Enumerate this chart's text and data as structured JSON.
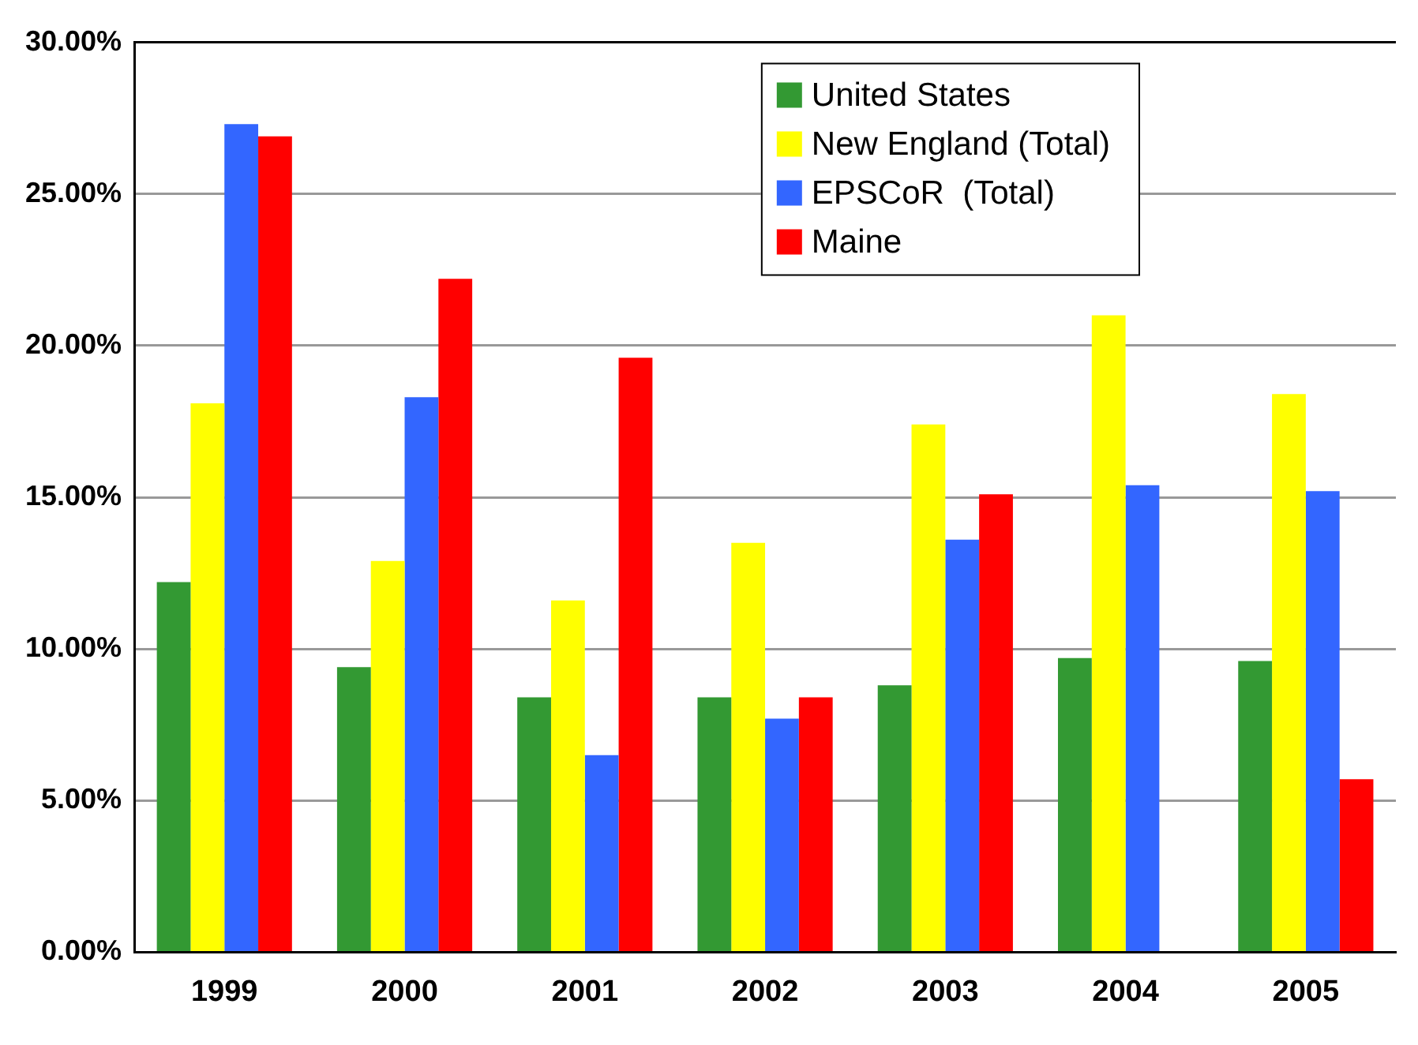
{
  "chart_data": {
    "type": "bar",
    "categories": [
      "1999",
      "2000",
      "2001",
      "2002",
      "2003",
      "2004",
      "2005"
    ],
    "series": [
      {
        "name": "United States",
        "color": "#339933",
        "values": [
          12.2,
          9.4,
          8.4,
          8.4,
          8.8,
          9.7,
          9.6
        ]
      },
      {
        "name": "New England (Total)",
        "color": "#ffff00",
        "values": [
          18.1,
          12.9,
          11.6,
          13.5,
          17.4,
          21.0,
          18.4
        ]
      },
      {
        "name": "EPSCoR  (Total)",
        "color": "#3366ff",
        "values": [
          27.3,
          18.3,
          6.5,
          7.7,
          13.6,
          15.4,
          15.2
        ]
      },
      {
        "name": "Maine",
        "color": "#ff0000",
        "values": [
          26.9,
          22.2,
          19.6,
          8.4,
          15.1,
          null,
          5.7
        ]
      }
    ],
    "ylim": [
      0,
      30
    ],
    "yticks": [
      {
        "value": 0,
        "label": "0.00%"
      },
      {
        "value": 5,
        "label": "5.00%"
      },
      {
        "value": 10,
        "label": "10.00%"
      },
      {
        "value": 15,
        "label": "15.00%"
      },
      {
        "value": 20,
        "label": "20.00%"
      },
      {
        "value": 25,
        "label": "25.00%"
      },
      {
        "value": 30,
        "label": "30.00%"
      }
    ],
    "grid": "y",
    "legend": "top right"
  }
}
